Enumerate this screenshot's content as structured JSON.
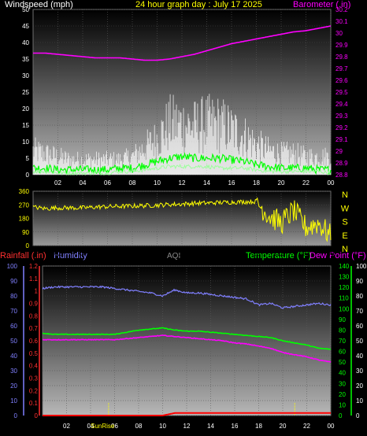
{
  "header": {
    "windspeed_label": "Windspeed (mph)",
    "title": "24 hour graph day : July 17 2025",
    "barometer_label": "Barometer (.in)",
    "rainfall_label": "Rainfall (.in)",
    "humidity_label": "Humidity",
    "aqi_label": "AQI",
    "temperature_label": "Temperature (°F)",
    "dewpoint_label": "Dew Point (°F)"
  },
  "colors": {
    "wind_gust": "#ffffff",
    "wind_avg": "#00ff00",
    "barometer": "#ff00ff",
    "direction": "#ffff00",
    "humidity": "#8080ff",
    "temperature": "#00ff00",
    "dewpoint": "#ff00ff",
    "rainfall": "#ff0000",
    "sun_marker": "#ffff00"
  },
  "chart_data": [
    {
      "type": "line",
      "panel": "wind-barometer",
      "x_ticks": [
        "02",
        "04",
        "06",
        "08",
        "10",
        "12",
        "14",
        "16",
        "18",
        "20",
        "22",
        "00"
      ],
      "y_left": {
        "label": "Windspeed (mph)",
        "ticks": [
          "0",
          "5",
          "10",
          "15",
          "20",
          "25",
          "30",
          "35",
          "40",
          "45",
          "50"
        ],
        "lim": [
          0,
          50
        ]
      },
      "y_right": {
        "label": "Barometer (.in)",
        "ticks": [
          "28.8",
          "28.9",
          "29",
          "29.1",
          "29.2",
          "29.3",
          "29.4",
          "29.5",
          "29.6",
          "29.7",
          "29.8",
          "29.9",
          "30",
          "30.1",
          "30.2"
        ],
        "lim": [
          28.8,
          30.2
        ]
      },
      "series": [
        {
          "name": "Barometer",
          "axis": "right",
          "x": [
            0,
            1,
            2,
            3,
            4,
            5,
            6,
            7,
            8,
            9,
            10,
            11,
            12,
            13,
            14,
            15,
            16,
            17,
            18,
            19,
            20,
            21,
            22,
            23,
            24
          ],
          "values": [
            29.83,
            29.83,
            29.82,
            29.81,
            29.8,
            29.79,
            29.79,
            29.79,
            29.78,
            29.77,
            29.77,
            29.78,
            29.8,
            29.82,
            29.85,
            29.88,
            29.91,
            29.93,
            29.95,
            29.97,
            29.99,
            30.01,
            30.02,
            30.04,
            30.06
          ]
        },
        {
          "name": "Wind gust",
          "axis": "left",
          "x": [
            0,
            1,
            2,
            3,
            4,
            5,
            6,
            7,
            8,
            9,
            10,
            11,
            12,
            13,
            14,
            15,
            16,
            17,
            18,
            19,
            20,
            21,
            22,
            23,
            24
          ],
          "values": [
            8,
            7,
            6,
            5,
            5,
            5,
            5,
            5,
            6,
            9,
            12,
            17,
            17,
            16,
            17,
            17,
            15,
            13,
            10,
            8,
            7,
            7,
            6,
            6,
            6
          ]
        },
        {
          "name": "Wind speed",
          "axis": "left",
          "x": [
            0,
            1,
            2,
            3,
            4,
            5,
            6,
            7,
            8,
            9,
            10,
            11,
            12,
            13,
            14,
            15,
            16,
            17,
            18,
            19,
            20,
            21,
            22,
            23,
            24
          ],
          "values": [
            2,
            2,
            1.5,
            1.5,
            1.5,
            1.5,
            1.5,
            2,
            2,
            3,
            4,
            5,
            5.5,
            5,
            5,
            5,
            4.5,
            4,
            3,
            2.5,
            2,
            2,
            2,
            1.5,
            1.5
          ]
        },
        {
          "name": "Wind average",
          "axis": "left",
          "x": [
            0,
            1,
            2,
            3,
            4,
            5,
            6,
            7,
            8,
            9,
            10,
            11,
            12,
            13,
            14,
            15,
            16,
            17,
            18,
            19,
            20,
            21,
            22,
            23,
            24
          ],
          "values": [
            1,
            1,
            0.5,
            0.5,
            0.5,
            0.5,
            0.5,
            1,
            1,
            1.5,
            2,
            2.5,
            2.5,
            2.5,
            2.5,
            2,
            2,
            2,
            1.5,
            1,
            1,
            1,
            1,
            1,
            0.5
          ]
        }
      ]
    },
    {
      "type": "line",
      "panel": "wind-direction",
      "x_ticks": [
        "02",
        "04",
        "06",
        "08",
        "10",
        "12",
        "14",
        "16",
        "18",
        "20",
        "22",
        "00"
      ],
      "y_left": {
        "ticks": [
          "360",
          "270",
          "180",
          "90",
          "0"
        ],
        "lim": [
          0,
          360
        ]
      },
      "y_right": {
        "ticks": [
          "N",
          "W",
          "S",
          "E",
          "N"
        ]
      },
      "series": [
        {
          "name": "Wind direction",
          "x": [
            0,
            1,
            2,
            3,
            4,
            5,
            6,
            7,
            8,
            9,
            10,
            11,
            12,
            13,
            14,
            15,
            16,
            17,
            18,
            19,
            20,
            21,
            22,
            23,
            24
          ],
          "values": [
            255,
            245,
            250,
            250,
            250,
            255,
            258,
            260,
            262,
            265,
            268,
            272,
            275,
            280,
            282,
            285,
            288,
            290,
            292,
            200,
            150,
            230,
            120,
            150,
            60
          ]
        }
      ]
    },
    {
      "type": "line",
      "panel": "humidity-temperature",
      "x_ticks": [
        "02",
        "04",
        "06",
        "08",
        "10",
        "12",
        "14",
        "16",
        "18",
        "20",
        "22",
        "00"
      ],
      "x_annotation": "SunRise",
      "y_far_left": {
        "label": "Humidity",
        "ticks": [
          "0",
          "10",
          "20",
          "30",
          "40",
          "50",
          "60",
          "70",
          "80",
          "90",
          "100"
        ],
        "lim": [
          0,
          100
        ]
      },
      "y_left": {
        "label": "Rainfall (.in)",
        "ticks": [
          "0",
          "0.1",
          "0.2",
          "0.3",
          "0.4",
          "0.5",
          "0.6",
          "0.7",
          "0.8",
          "0.9",
          "1",
          "1.1",
          "1.2"
        ],
        "lim": [
          0,
          1.2
        ]
      },
      "y_right": {
        "label": "Temperature (°F)",
        "ticks": [
          "0",
          "10",
          "20",
          "30",
          "40",
          "50",
          "60",
          "70",
          "80",
          "90",
          "100",
          "110",
          "120",
          "130",
          "140"
        ],
        "lim": [
          0,
          140
        ]
      },
      "y_far_right": {
        "ticks": [
          "0",
          "10",
          "20",
          "30",
          "40",
          "50",
          "60",
          "70",
          "80",
          "90",
          "100"
        ],
        "lim": [
          0,
          100
        ]
      },
      "sun_markers_hours": [
        5.5,
        21.0
      ],
      "series": [
        {
          "name": "Humidity",
          "axis": "far_left",
          "x": [
            0,
            1,
            2,
            3,
            4,
            5,
            6,
            7,
            8,
            9,
            10,
            11,
            12,
            13,
            14,
            15,
            16,
            17,
            18,
            19,
            20,
            21,
            22,
            23,
            24
          ],
          "values": [
            85,
            86,
            86,
            86,
            86,
            86,
            85,
            84,
            83,
            82,
            80,
            84,
            82,
            82,
            81,
            80,
            79,
            78,
            74,
            75,
            72,
            73,
            74,
            75,
            74
          ]
        },
        {
          "name": "Temperature",
          "axis": "right",
          "x": [
            0,
            1,
            2,
            3,
            4,
            5,
            6,
            7,
            8,
            9,
            10,
            11,
            12,
            13,
            14,
            15,
            16,
            17,
            18,
            19,
            20,
            21,
            22,
            23,
            24
          ],
          "values": [
            77,
            76,
            76,
            76,
            76,
            76,
            76,
            78,
            80,
            81,
            82,
            80,
            79,
            79,
            78,
            77,
            76,
            75,
            74,
            73,
            70,
            68,
            66,
            63,
            62
          ]
        },
        {
          "name": "Dew Point",
          "axis": "right",
          "x": [
            0,
            1,
            2,
            3,
            4,
            5,
            6,
            7,
            8,
            9,
            10,
            11,
            12,
            13,
            14,
            15,
            16,
            17,
            18,
            19,
            20,
            21,
            22,
            23,
            24
          ],
          "values": [
            71,
            71,
            71,
            71,
            71,
            71,
            71,
            72,
            73,
            74,
            75,
            74,
            73,
            72,
            71,
            70,
            68,
            67,
            65,
            63,
            59,
            57,
            55,
            52,
            50
          ]
        },
        {
          "name": "Rainfall",
          "axis": "left",
          "x": [
            0,
            1,
            2,
            3,
            4,
            5,
            6,
            7,
            8,
            9,
            10,
            11,
            12,
            13,
            14,
            15,
            16,
            17,
            18,
            19,
            20,
            21,
            22,
            23,
            24
          ],
          "values": [
            0,
            0,
            0,
            0,
            0,
            0,
            0,
            0,
            0,
            0,
            0,
            0.02,
            0.02,
            0.02,
            0.02,
            0.02,
            0.02,
            0.02,
            0.02,
            0.02,
            0.02,
            0.02,
            0.02,
            0.02,
            0.02
          ]
        }
      ]
    }
  ]
}
